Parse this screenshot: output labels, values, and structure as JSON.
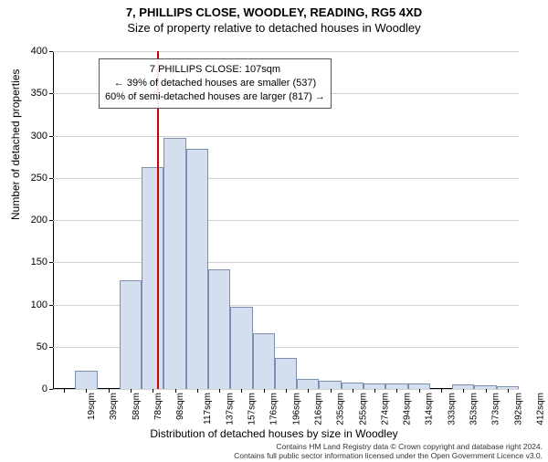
{
  "title_line1": "7, PHILLIPS CLOSE, WOODLEY, READING, RG5 4XD",
  "title_line2": "Size of property relative to detached houses in Woodley",
  "y_axis_label": "Number of detached properties",
  "x_axis_label": "Distribution of detached houses by size in Woodley",
  "footer_line1": "Contains HM Land Registry data © Crown copyright and database right 2024.",
  "footer_line2": "Contains full public sector information licensed under the Open Government Licence v3.0.",
  "annotation": {
    "line1": "7 PHILLIPS CLOSE: 107sqm",
    "line2": "← 39% of detached houses are smaller (537)",
    "line3": "60% of semi-detached houses are larger (817) →"
  },
  "chart": {
    "type": "histogram",
    "ylim": [
      0,
      400
    ],
    "ytick_step": 50,
    "x_labels": [
      "19sqm",
      "39sqm",
      "58sqm",
      "78sqm",
      "98sqm",
      "117sqm",
      "137sqm",
      "157sqm",
      "176sqm",
      "196sqm",
      "216sqm",
      "235sqm",
      "255sqm",
      "274sqm",
      "294sqm",
      "314sqm",
      "333sqm",
      "353sqm",
      "373sqm",
      "392sqm",
      "412sqm"
    ],
    "values": [
      0,
      22,
      0,
      129,
      263,
      297,
      284,
      142,
      97,
      66,
      37,
      12,
      10,
      8,
      7,
      7,
      6,
      0,
      5,
      4,
      3
    ],
    "bar_fill": "#d3deee",
    "bar_stroke": "#7c8faf",
    "grid_color": "#d0d0d0",
    "background": "#ffffff",
    "marker_value": 107,
    "marker_color": "#cc0000",
    "x_domain": [
      19,
      412
    ],
    "bar_gap_ratio": 0.0
  },
  "style": {
    "title_fontsize": 13,
    "label_fontsize": 12,
    "tick_fontsize": 11,
    "footer_fontsize": 8.5
  }
}
